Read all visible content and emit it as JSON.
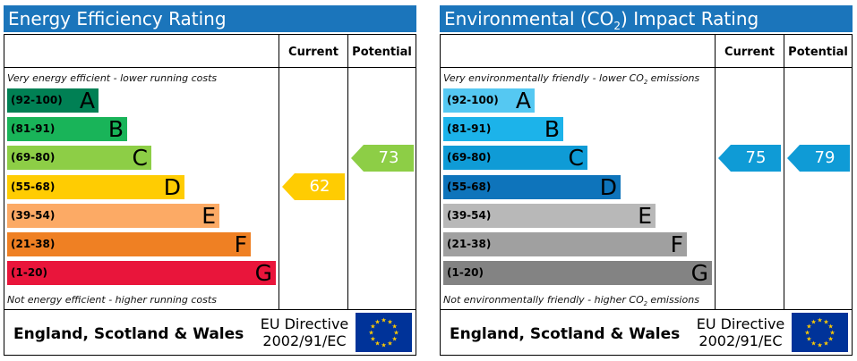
{
  "energy": {
    "title": "Energy Efficiency Rating",
    "current_header": "Current",
    "potential_header": "Potential",
    "top_note": "Very energy efficient - lower running costs",
    "bottom_note": "Not energy efficient - higher running costs",
    "bands": [
      {
        "range": "(92-100)",
        "letter": "A",
        "color": "#008054"
      },
      {
        "range": "(81-91)",
        "letter": "B",
        "color": "#19b459"
      },
      {
        "range": "(69-80)",
        "letter": "C",
        "color": "#8dce46"
      },
      {
        "range": "(55-68)",
        "letter": "D",
        "color": "#ffcc02"
      },
      {
        "range": "(39-54)",
        "letter": "E",
        "color": "#fcaa65"
      },
      {
        "range": "(21-38)",
        "letter": "F",
        "color": "#ef8023"
      },
      {
        "range": "(1-20)",
        "letter": "G",
        "color": "#e9153b"
      }
    ],
    "current": {
      "value": "62",
      "band": "D",
      "color": "#ffcc02"
    },
    "potential": {
      "value": "73",
      "band": "C",
      "color": "#8dce46"
    },
    "footer_country": "England, Scotland & Wales",
    "footer_directive_line1": "EU Directive",
    "footer_directive_line2": "2002/91/EC",
    "flag_icon": "eu-flag-icon"
  },
  "environmental": {
    "title_prefix": "Environmental (CO",
    "title_sub": "2",
    "title_suffix": ") Impact Rating",
    "current_header": "Current",
    "potential_header": "Potential",
    "top_note_prefix": "Very environmentally friendly - lower CO",
    "top_note_sub": "2",
    "top_note_suffix": " emissions",
    "bottom_note_prefix": "Not environmentally friendly - higher CO",
    "bottom_note_sub": "2",
    "bottom_note_suffix": " emissions",
    "bands": [
      {
        "range": "(92-100)",
        "letter": "A",
        "color": "#55c8f2"
      },
      {
        "range": "(81-91)",
        "letter": "B",
        "color": "#1cb3ea"
      },
      {
        "range": "(69-80)",
        "letter": "C",
        "color": "#0f9bd6"
      },
      {
        "range": "(55-68)",
        "letter": "D",
        "color": "#0e74bb"
      },
      {
        "range": "(39-54)",
        "letter": "E",
        "color": "#b8b8b8"
      },
      {
        "range": "(21-38)",
        "letter": "F",
        "color": "#a0a0a0"
      },
      {
        "range": "(1-20)",
        "letter": "G",
        "color": "#838383"
      }
    ],
    "current": {
      "value": "75",
      "band": "C",
      "color": "#0f9bd6"
    },
    "potential": {
      "value": "79",
      "band": "C",
      "color": "#0f9bd6"
    },
    "footer_country": "England, Scotland & Wales",
    "footer_directive_line1": "EU Directive",
    "footer_directive_line2": "2002/91/EC",
    "flag_icon": "eu-flag-icon"
  }
}
